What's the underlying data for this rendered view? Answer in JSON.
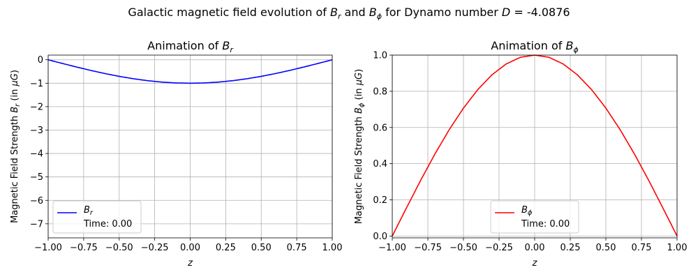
{
  "suptitle": {
    "prefix": "Galactic magnetic field evolution of ",
    "br_main": "B",
    "br_sub": "r",
    "and": " and ",
    "bphi_main": "B",
    "bphi_sub": "ϕ",
    "for_text": " for Dynamo number ",
    "d_main": "D",
    "d_value": " = -4.0876"
  },
  "chart_data": [
    {
      "type": "line",
      "title_prefix": "Animation of ",
      "title_main": "B",
      "title_sub": "r",
      "xlabel": "z",
      "ylabel_prefix": "Magnetic Field Strength ",
      "ylabel_main": "B",
      "ylabel_sub": "r",
      "ylabel_unit_open": " (in ",
      "ylabel_unit_mu": "μ",
      "ylabel_unit_g": "G",
      "ylabel_unit_close": ")",
      "xlim": [
        -1.0,
        1.0
      ],
      "ylim": [
        -7.6,
        0.2
      ],
      "xticks": [
        -1.0,
        -0.75,
        -0.5,
        -0.25,
        0.0,
        0.25,
        0.5,
        0.75,
        1.0
      ],
      "xtick_labels": [
        "−1.00",
        "−0.75",
        "−0.50",
        "−0.25",
        "0.00",
        "0.25",
        "0.50",
        "0.75",
        "1.00"
      ],
      "yticks": [
        0,
        -1,
        -2,
        -3,
        -4,
        -5,
        -6,
        -7
      ],
      "ytick_labels": [
        "0",
        "−1",
        "−2",
        "−3",
        "−4",
        "−5",
        "−6",
        "−7"
      ],
      "grid": true,
      "legend_placement": "lower-left",
      "series": [
        {
          "name_main": "B",
          "name_sub": "r",
          "color": "#0000ff",
          "x": [
            -1.0,
            -0.9,
            -0.8,
            -0.7,
            -0.6,
            -0.5,
            -0.4,
            -0.3,
            -0.2,
            -0.1,
            0.0,
            0.1,
            0.2,
            0.3,
            0.4,
            0.5,
            0.6,
            0.7,
            0.8,
            0.9,
            1.0
          ],
          "y": [
            0.0,
            -0.156,
            -0.309,
            -0.454,
            -0.588,
            -0.707,
            -0.809,
            -0.891,
            -0.951,
            -0.988,
            -1.0,
            -0.988,
            -0.951,
            -0.891,
            -0.809,
            -0.707,
            -0.588,
            -0.454,
            -0.309,
            -0.156,
            0.0
          ]
        }
      ],
      "legend_time": "Time: 0.00"
    },
    {
      "type": "line",
      "title_prefix": "Animation of ",
      "title_main": "B",
      "title_sub": "ϕ",
      "xlabel": "z",
      "ylabel_prefix": "Magnetic Field Strength ",
      "ylabel_main": "B",
      "ylabel_sub": "ϕ",
      "ylabel_unit_open": " (in ",
      "ylabel_unit_mu": "μ",
      "ylabel_unit_g": "G",
      "ylabel_unit_close": ")",
      "xlim": [
        -1.0,
        1.0
      ],
      "ylim": [
        -0.01,
        1.0
      ],
      "xticks": [
        -1.0,
        -0.75,
        -0.5,
        -0.25,
        0.0,
        0.25,
        0.5,
        0.75,
        1.0
      ],
      "xtick_labels": [
        "−1.00",
        "−0.75",
        "−0.50",
        "−0.25",
        "0.00",
        "0.25",
        "0.50",
        "0.75",
        "1.00"
      ],
      "yticks": [
        0.0,
        0.2,
        0.4,
        0.6,
        0.8,
        1.0
      ],
      "ytick_labels": [
        "0.0",
        "0.2",
        "0.4",
        "0.6",
        "0.8",
        "1.0"
      ],
      "grid": true,
      "legend_placement": "lower-center",
      "series": [
        {
          "name_main": "B",
          "name_sub": "ϕ",
          "color": "#ff0000",
          "x": [
            -1.0,
            -0.9,
            -0.8,
            -0.7,
            -0.6,
            -0.5,
            -0.4,
            -0.3,
            -0.2,
            -0.1,
            0.0,
            0.1,
            0.2,
            0.3,
            0.4,
            0.5,
            0.6,
            0.7,
            0.8,
            0.9,
            1.0
          ],
          "y": [
            0.0,
            0.156,
            0.309,
            0.454,
            0.588,
            0.707,
            0.809,
            0.891,
            0.951,
            0.988,
            1.0,
            0.988,
            0.951,
            0.891,
            0.809,
            0.707,
            0.588,
            0.454,
            0.309,
            0.156,
            0.0
          ]
        }
      ],
      "legend_time": "Time: 0.00"
    }
  ]
}
